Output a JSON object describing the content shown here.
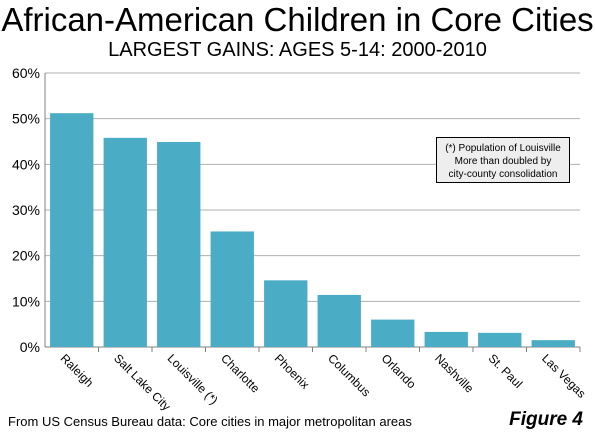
{
  "chart_data": {
    "type": "bar",
    "title": "African-American Children in Core Cities",
    "subtitle": "LARGEST GAINS: AGES 5-14: 2000-2010",
    "categories": [
      "Raleigh",
      "Salt Lake City",
      "Louisville (*)",
      "Charlotte",
      "Phoenix",
      "Columbus",
      "Orlando",
      "Nashville",
      "St. Paul",
      "Las Vegas"
    ],
    "values": [
      51.2,
      45.8,
      44.9,
      25.3,
      14.6,
      11.4,
      6.0,
      3.3,
      3.1,
      1.5
    ],
    "ylim": [
      0,
      60
    ],
    "yticks": [
      "0%",
      "10%",
      "20%",
      "30%",
      "40%",
      "50%",
      "60%"
    ],
    "xlabel": "",
    "ylabel": "",
    "grid": true,
    "bar_color": "#4bacc6",
    "annotation": [
      "(*) Population of Louisville",
      "More than doubled by",
      "city-county consolidation"
    ]
  },
  "footer": "From US Census Bureau data: Core cities in major metropolitan areas",
  "figure_label": "Figure 4"
}
